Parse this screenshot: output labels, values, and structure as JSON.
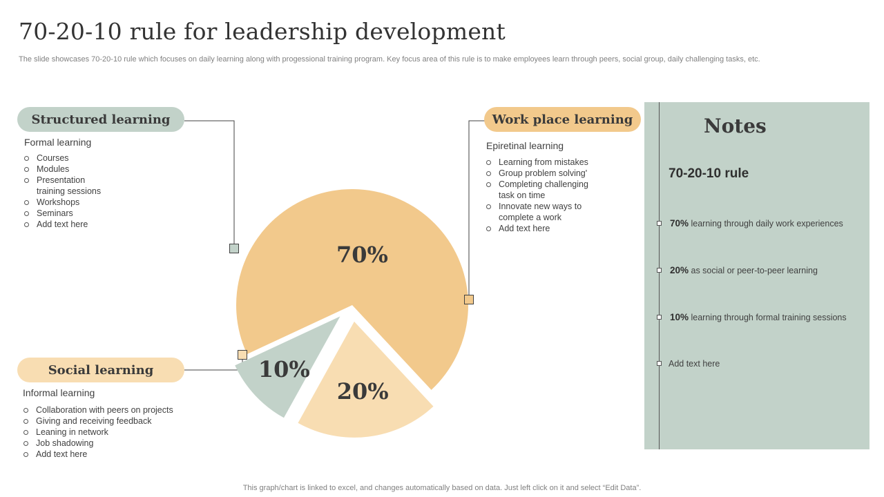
{
  "title": "70-20-10 rule for leadership development",
  "subtitle": "The slide showcases 70-20-10 rule which focuses on daily learning along with progessional training program. Key focus area of this rule is to make employees learn through peers, social group, daily challenging tasks, etc.",
  "sections": {
    "structured": {
      "label": "Structured learning",
      "heading": "Formal learning",
      "items": [
        "Courses",
        "Modules",
        "Presentation",
        "training sessions",
        "Workshops",
        "Seminars",
        "Add text here"
      ]
    },
    "social": {
      "label": "Social learning",
      "heading": "Informal learning",
      "items": [
        "Collaboration with peers on projects",
        "Giving and receiving feedback",
        "Leaning in network",
        "Job shadowing",
        "Add text here"
      ]
    },
    "work": {
      "label": "Work place learning",
      "heading": "Epiretinal learning",
      "items": [
        "Learning from mistakes",
        "Group problem solving'",
        "Completing challenging",
        "task on time",
        "Innovate new ways to",
        "complete a work",
        "Add text here"
      ]
    }
  },
  "notes": {
    "title": "Notes",
    "subtitle": "70-20-10 rule",
    "items": [
      {
        "bold": "70%",
        "text": " learning through daily work  experiences"
      },
      {
        "bold": "20%",
        "text": " as social or peer-to-peer  learning"
      },
      {
        "bold": "10%",
        "text": " learning  through formal training sessions"
      },
      {
        "bold": "",
        "text": "Add text here"
      }
    ]
  },
  "footer": "This graph/chart is linked to excel,  and changes automatically based on data. Just left click on it and select “Edit Data”.",
  "colors": {
    "structured": "#c2d2c9",
    "social": "#f8ddb2",
    "work": "#f2c98c",
    "connector": "#404040"
  },
  "chart_data": {
    "type": "pie",
    "categories": [
      "Work place learning",
      "Social learning",
      "Structured learning"
    ],
    "values": [
      70,
      20,
      10
    ],
    "value_labels": [
      "70%",
      "20%",
      "10%"
    ],
    "colors": [
      "#f2c98c",
      "#f8ddb2",
      "#c2d2c9"
    ]
  }
}
